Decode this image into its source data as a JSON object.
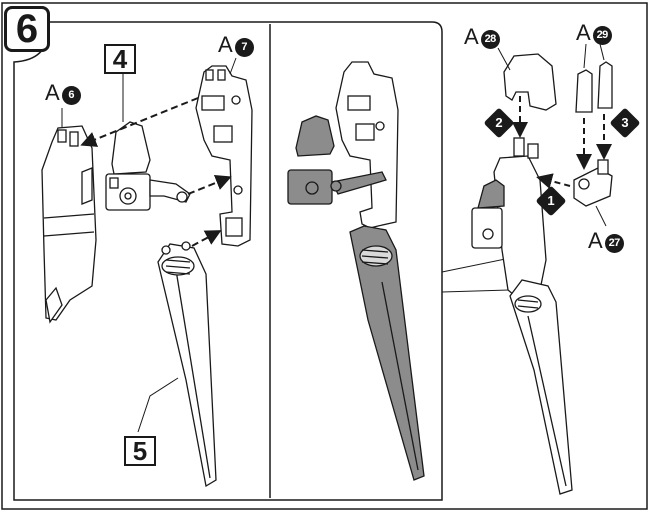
{
  "step": {
    "number": "6"
  },
  "part_labels": {
    "a6": {
      "letter": "A",
      "num": "6"
    },
    "a7": {
      "letter": "A",
      "num": "7"
    },
    "a28": {
      "letter": "A",
      "num": "28"
    },
    "a29": {
      "letter": "A",
      "num": "29"
    },
    "a27": {
      "letter": "A",
      "num": "27"
    }
  },
  "subassemblies": {
    "box4": "4",
    "box5": "5"
  },
  "sequence": {
    "s1": "1",
    "s2": "2",
    "s3": "3"
  },
  "colors": {
    "ink": "#1a1a1a",
    "shaded": "#8c8c8c",
    "light": "#d9d9d9"
  }
}
